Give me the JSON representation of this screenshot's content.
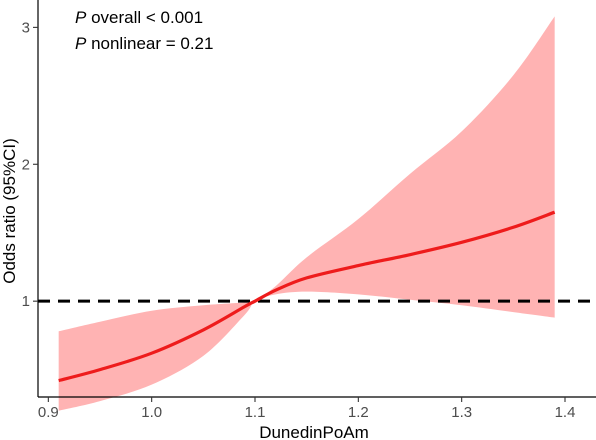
{
  "chart_data": {
    "type": "line",
    "title": "",
    "xlabel": "DunedinPoAm",
    "ylabel": "Odds ratio (95%CI)",
    "xlim": [
      0.89,
      1.43
    ],
    "ylim": [
      0.3,
      3.2
    ],
    "x_ticks": [
      0.9,
      1.0,
      1.1,
      1.2,
      1.3,
      1.4
    ],
    "x_tick_labels": [
      "0.9",
      "1.0",
      "1.1",
      "1.2",
      "1.3",
      "1.4"
    ],
    "y_ticks": [
      1,
      2,
      3
    ],
    "y_tick_labels": [
      "1",
      "2",
      "3"
    ],
    "grid": false,
    "reference_line": {
      "y": 1,
      "style": "dashed",
      "color": "#000000"
    },
    "annotations": [
      {
        "italic_prefix": "P",
        "text": " overall < 0.001"
      },
      {
        "italic_prefix": "P",
        "text": " nonlinear = 0.21"
      }
    ],
    "series": [
      {
        "color": "#ee1c1c",
        "band_color": "#ffb3b3",
        "x": [
          0.91,
          0.95,
          1.0,
          1.05,
          1.09,
          1.1,
          1.12,
          1.15,
          1.2,
          1.25,
          1.3,
          1.35,
          1.39
        ],
        "y": [
          0.42,
          0.5,
          0.62,
          0.79,
          0.96,
          1.0,
          1.08,
          1.17,
          1.26,
          1.34,
          1.43,
          1.54,
          1.65
        ],
        "lower": [
          0.2,
          0.27,
          0.39,
          0.6,
          0.9,
          1.0,
          1.05,
          1.07,
          1.05,
          1.01,
          0.97,
          0.92,
          0.88
        ],
        "upper": [
          0.78,
          0.85,
          0.93,
          0.97,
          0.99,
          1.0,
          1.11,
          1.32,
          1.6,
          1.93,
          2.24,
          2.65,
          3.08
        ]
      }
    ]
  }
}
